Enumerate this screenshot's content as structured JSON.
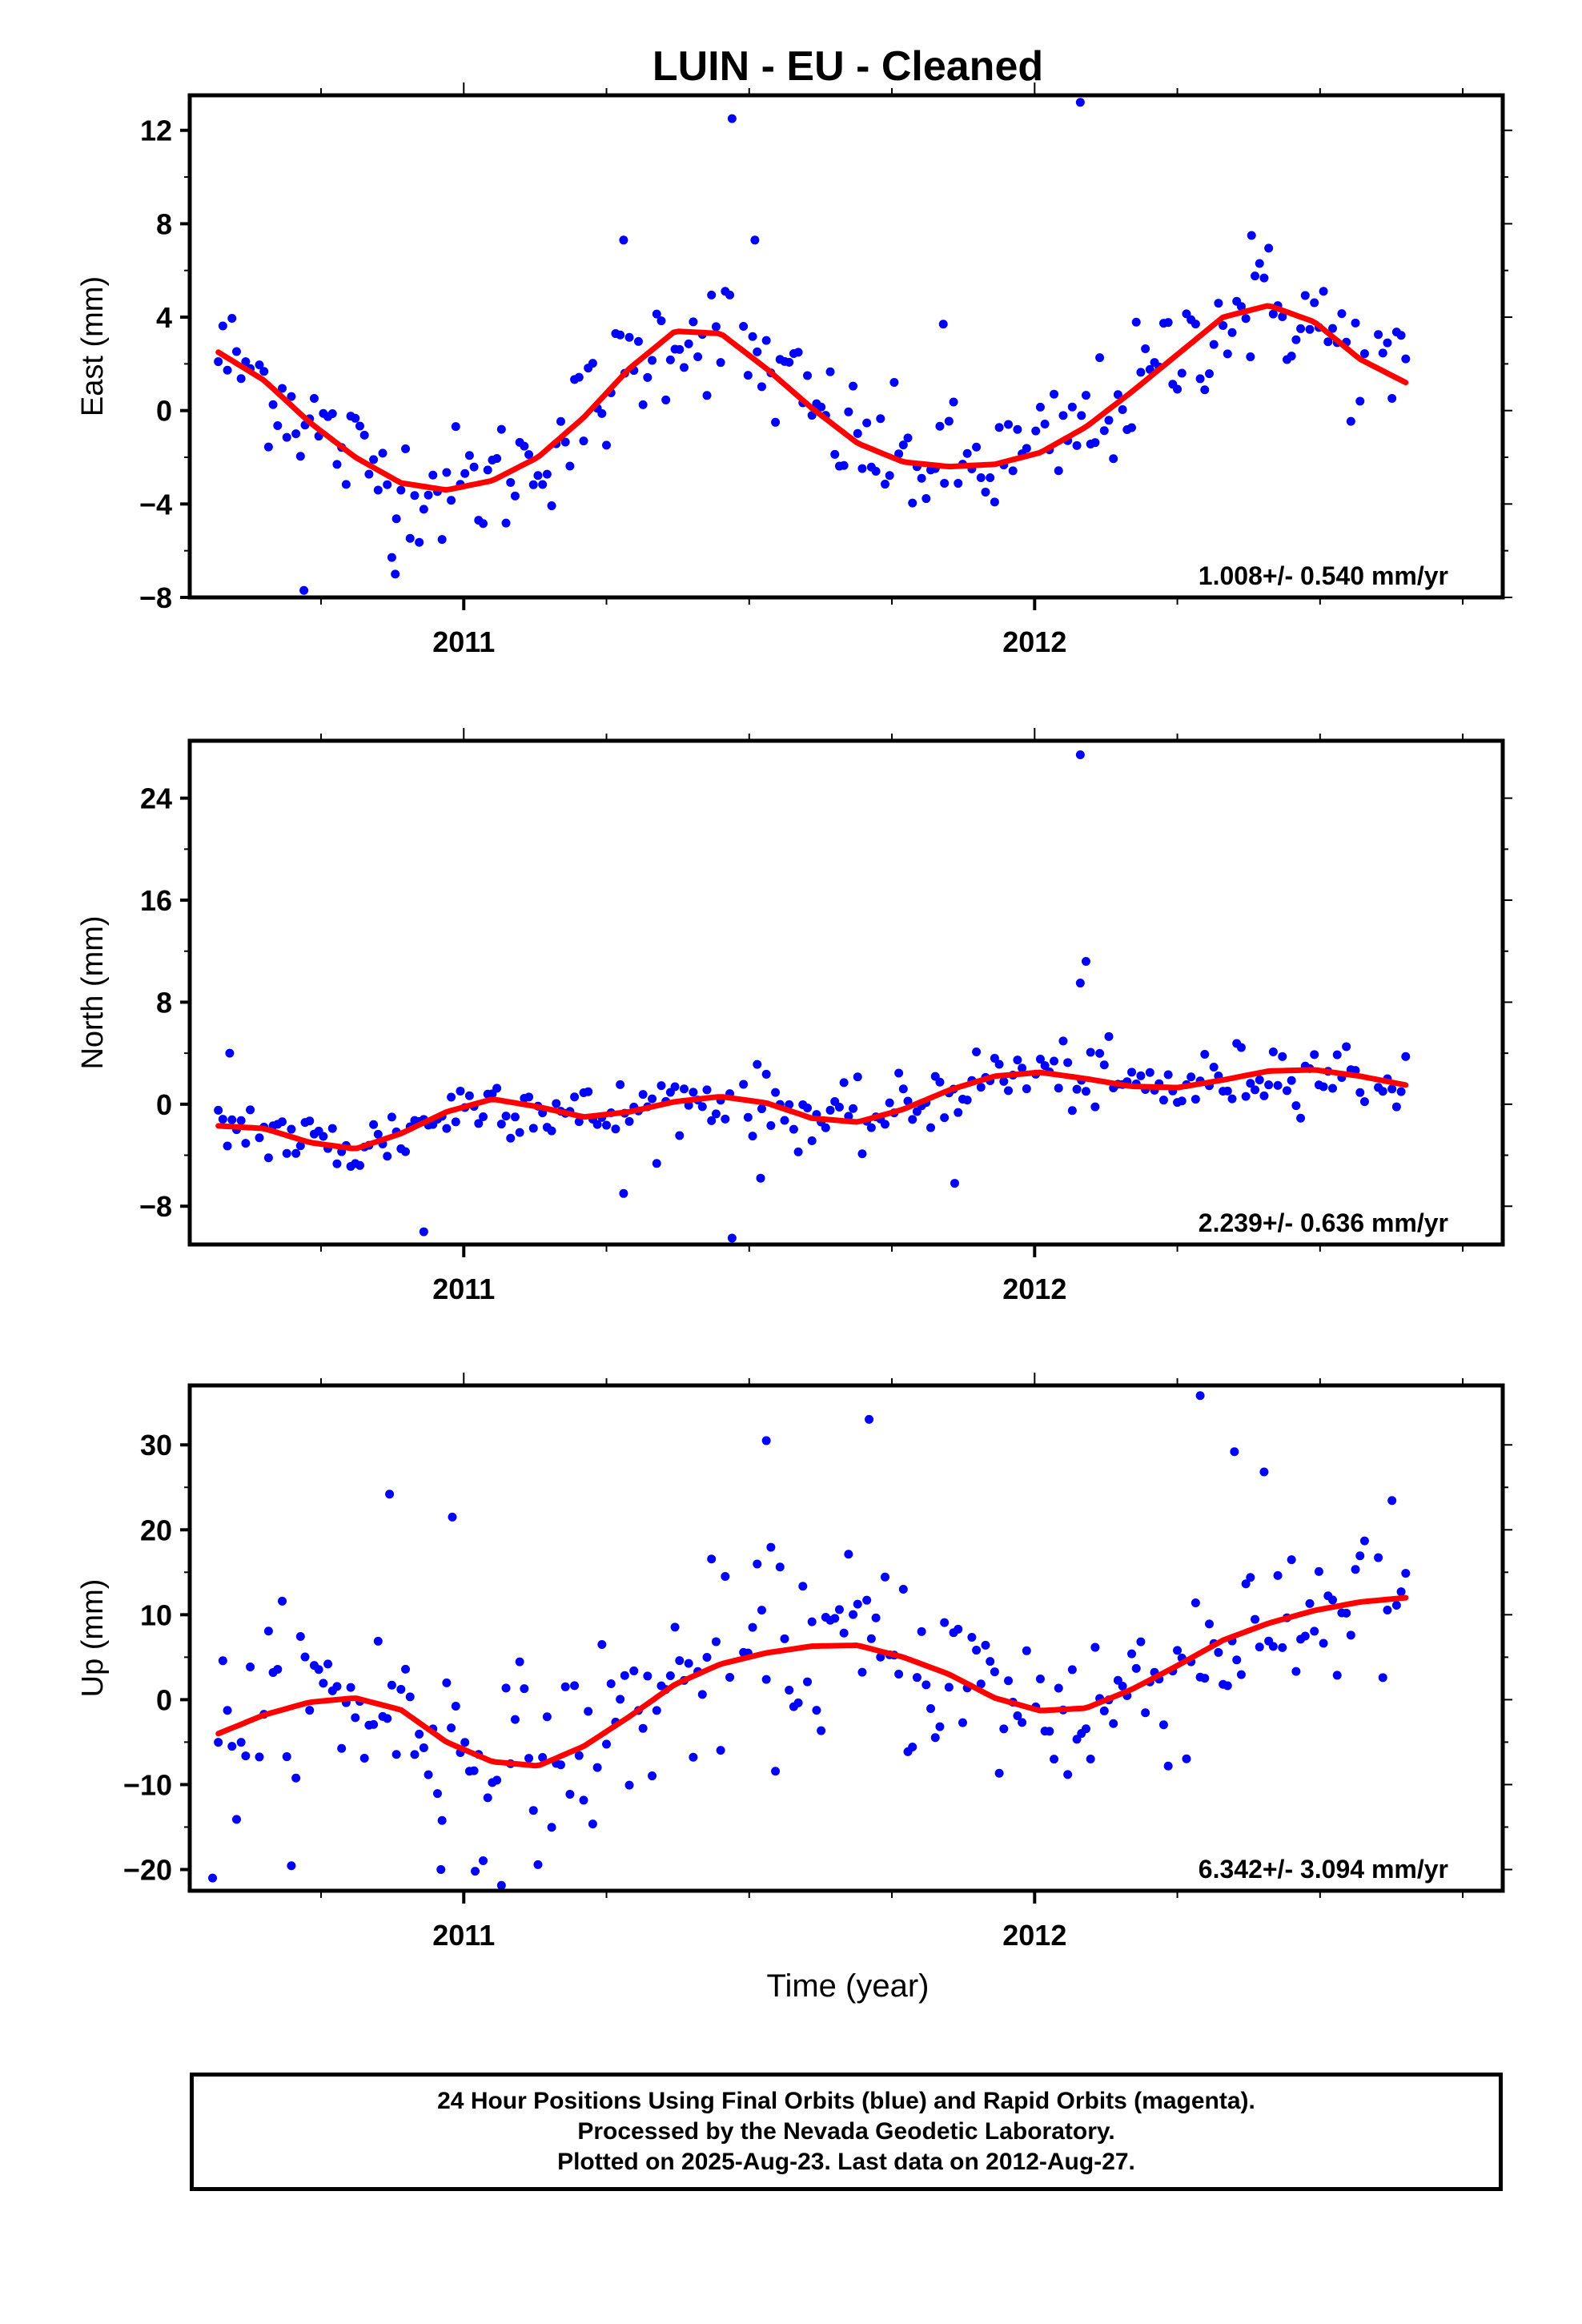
{
  "title": "LUIN  - EU - Cleaned",
  "xlabel": "Time (year)",
  "footer": {
    "line1": "24 Hour Positions Using Final Orbits (blue) and Rapid Orbits (magenta).",
    "line2": "Processed by the Nevada Geodetic Laboratory.",
    "line3": "Plotted on 2025-Aug-23. Last data on 2012-Aug-27."
  },
  "colors": {
    "points": "#0000ff",
    "fit": "#ff0000",
    "frame": "#000000"
  },
  "chart_data": [
    {
      "type": "scatter",
      "ylabel": "East (mm)",
      "xlim": [
        2010.52,
        2012.82
      ],
      "ylim": [
        -8,
        13.5
      ],
      "yticks": [
        -8,
        -4,
        0,
        4,
        8,
        12
      ],
      "xticks": [
        {
          "value": 2011,
          "label": "2011"
        },
        {
          "value": 2012,
          "label": "2012"
        }
      ],
      "rate_label": "1.008+/- 0.540 mm/yr",
      "fit": {
        "x": [
          2010.57,
          2010.65,
          2010.73,
          2010.81,
          2010.89,
          2010.97,
          2011.05,
          2011.13,
          2011.21,
          2011.29,
          2011.37,
          2011.45,
          2011.53,
          2011.61,
          2011.69,
          2011.77,
          2011.85,
          2011.93,
          2012.01,
          2012.09,
          2012.17,
          2012.25,
          2012.33,
          2012.41,
          2012.49,
          2012.57,
          2012.65
        ],
        "y": [
          2.5,
          1.3,
          -0.5,
          -2.0,
          -3.1,
          -3.4,
          -3.0,
          -2.0,
          -0.3,
          1.8,
          3.4,
          3.3,
          1.8,
          0.1,
          -1.4,
          -2.2,
          -2.4,
          -2.3,
          -1.8,
          -0.7,
          0.8,
          2.4,
          4.0,
          4.5,
          3.8,
          2.2,
          1.2
        ]
      },
      "points": {
        "step": 0.008,
        "noise": 1.3,
        "gaps": [
          [
            2010.63,
            2010.64
          ],
          [
            2011.47,
            2011.49
          ],
          [
            2011.99,
            2012.0
          ],
          [
            2012.58,
            2012.6
          ]
        ],
        "outliers": [
          {
            "x": 2011.47,
            "y": 12.5
          },
          {
            "x": 2012.08,
            "y": 13.2
          },
          {
            "x": 2010.72,
            "y": -7.7
          },
          {
            "x": 2010.88,
            "y": -7.0
          },
          {
            "x": 2011.28,
            "y": 7.3
          },
          {
            "x": 2011.51,
            "y": 7.3
          },
          {
            "x": 2011.84,
            "y": 3.7
          },
          {
            "x": 2012.38,
            "y": 7.5
          }
        ]
      }
    },
    {
      "type": "scatter",
      "ylabel": "North (mm)",
      "xlim": [
        2010.52,
        2012.82
      ],
      "ylim": [
        -11,
        28.5
      ],
      "yticks": [
        -8,
        0,
        8,
        16,
        24
      ],
      "xticks": [
        {
          "value": 2011,
          "label": "2011"
        },
        {
          "value": 2012,
          "label": "2012"
        }
      ],
      "rate_label": "2.239+/- 0.636 mm/yr",
      "fit": {
        "x": [
          2010.57,
          2010.65,
          2010.73,
          2010.81,
          2010.89,
          2010.97,
          2011.05,
          2011.13,
          2011.21,
          2011.29,
          2011.37,
          2011.45,
          2011.53,
          2011.61,
          2011.69,
          2011.77,
          2011.85,
          2011.93,
          2012.01,
          2012.09,
          2012.17,
          2012.25,
          2012.33,
          2012.41,
          2012.49,
          2012.57,
          2012.65
        ],
        "y": [
          -1.7,
          -1.9,
          -3.0,
          -3.5,
          -2.3,
          -0.6,
          0.4,
          -0.2,
          -1.0,
          -0.6,
          0.2,
          0.6,
          0.1,
          -1.1,
          -1.4,
          -0.4,
          1.1,
          2.2,
          2.5,
          2.0,
          1.4,
          1.3,
          1.9,
          2.6,
          2.7,
          2.2,
          1.5
        ]
      },
      "points": {
        "step": 0.008,
        "noise": 1.3,
        "gaps": [
          [
            2010.63,
            2010.64
          ],
          [
            2011.47,
            2011.49
          ],
          [
            2011.99,
            2012.0
          ],
          [
            2012.58,
            2012.6
          ]
        ],
        "outliers": [
          {
            "x": 2012.08,
            "y": 27.4
          },
          {
            "x": 2012.09,
            "y": 11.2
          },
          {
            "x": 2012.08,
            "y": 9.5
          },
          {
            "x": 2010.93,
            "y": -10.0
          },
          {
            "x": 2011.47,
            "y": -10.5
          },
          {
            "x": 2011.52,
            "y": -5.8
          },
          {
            "x": 2011.28,
            "y": -7.0
          },
          {
            "x": 2010.59,
            "y": 4.0
          },
          {
            "x": 2011.86,
            "y": -6.2
          }
        ]
      }
    },
    {
      "type": "scatter",
      "ylabel": "Up (mm)",
      "xlim": [
        2010.52,
        2012.82
      ],
      "ylim": [
        -22.5,
        37
      ],
      "yticks": [
        -20,
        -10,
        0,
        10,
        20,
        30
      ],
      "xticks": [
        {
          "value": 2011,
          "label": "2011"
        },
        {
          "value": 2012,
          "label": "2012"
        }
      ],
      "rate_label": "6.342+/- 3.094 mm/yr",
      "fit": {
        "x": [
          2010.57,
          2010.65,
          2010.73,
          2010.81,
          2010.89,
          2010.97,
          2011.05,
          2011.13,
          2011.21,
          2011.29,
          2011.37,
          2011.45,
          2011.53,
          2011.61,
          2011.69,
          2011.77,
          2011.85,
          2011.93,
          2012.01,
          2012.09,
          2012.17,
          2012.25,
          2012.33,
          2012.41,
          2012.49,
          2012.57,
          2012.65
        ],
        "y": [
          -4.0,
          -1.8,
          -0.3,
          0.2,
          -1.2,
          -5.0,
          -7.3,
          -7.8,
          -5.5,
          -2.0,
          1.8,
          4.2,
          5.5,
          6.3,
          6.4,
          5.0,
          3.0,
          0.2,
          -1.3,
          -1.0,
          1.2,
          4.0,
          7.0,
          9.0,
          10.5,
          11.5,
          12.0
        ]
      },
      "points": {
        "step": 0.008,
        "noise": 5.5,
        "gaps": [
          [
            2010.63,
            2010.64
          ],
          [
            2011.47,
            2011.49
          ],
          [
            2011.99,
            2012.0
          ],
          [
            2012.58,
            2012.6
          ]
        ],
        "outliers": [
          {
            "x": 2012.29,
            "y": 35.8
          },
          {
            "x": 2011.71,
            "y": 33.0
          },
          {
            "x": 2011.53,
            "y": 30.5
          },
          {
            "x": 2012.35,
            "y": 29.2
          },
          {
            "x": 2010.87,
            "y": 24.2
          },
          {
            "x": 2010.98,
            "y": 21.5
          },
          {
            "x": 2010.56,
            "y": -21.0
          },
          {
            "x": 2011.02,
            "y": -20.2
          },
          {
            "x": 2010.96,
            "y": -20.0
          }
        ]
      }
    }
  ]
}
